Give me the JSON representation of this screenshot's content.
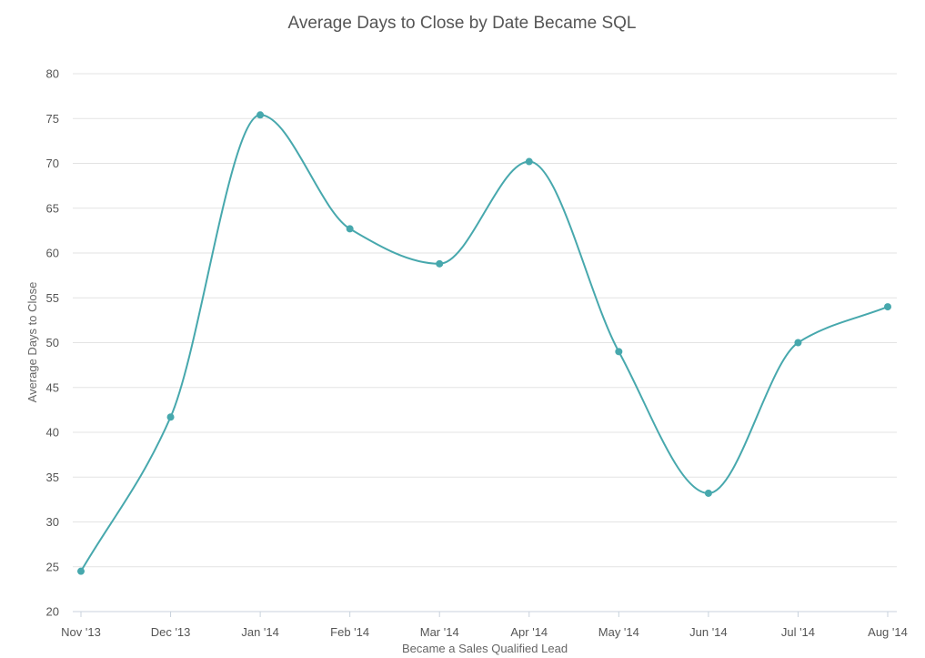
{
  "chart_data": {
    "type": "line",
    "title": "Average Days to Close by Date Became SQL",
    "xlabel": "Became a Sales Qualified Lead",
    "ylabel": "Average Days to Close",
    "categories": [
      "Nov '13",
      "Dec '13",
      "Jan '14",
      "Feb '14",
      "Mar '14",
      "Apr '14",
      "May '14",
      "Jun '14",
      "Jul '14",
      "Aug '14"
    ],
    "series": [
      {
        "values": [
          24.5,
          41.7,
          75.4,
          62.7,
          58.8,
          70.2,
          49.0,
          33.2,
          50.0,
          54.0
        ]
      }
    ],
    "ylim": [
      20,
      80
    ],
    "yticks": [
      20,
      25,
      30,
      35,
      40,
      45,
      50,
      55,
      60,
      65,
      70,
      75,
      80
    ],
    "grid": true,
    "smooth": true,
    "markers": true,
    "colors": {
      "line": "#47a8ad",
      "grid": "#e3e3e3",
      "axis": "#c8d2dc"
    }
  }
}
